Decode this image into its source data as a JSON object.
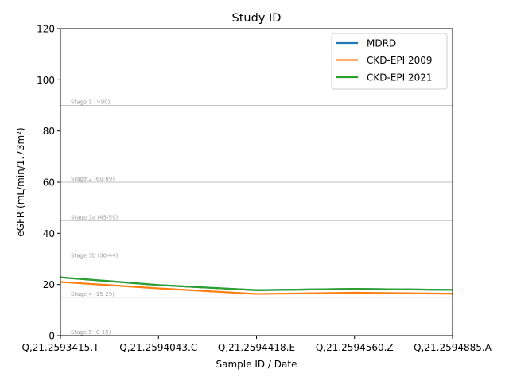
{
  "chart_data": {
    "type": "line",
    "title": "Study ID",
    "xlabel": "Sample ID / Date",
    "ylabel": "eGFR (mL/min/1.73m²)",
    "ylim": [
      0,
      120
    ],
    "yticks": [
      0,
      20,
      40,
      60,
      80,
      100,
      120
    ],
    "categories": [
      "Q,21.2593415.T",
      "Q,21.2594043.C",
      "Q,21.2594418.E",
      "Q,21.2594560.Z",
      "Q,21.2594885.A"
    ],
    "series": [
      {
        "name": "MDRD",
        "color": "#1f77b4",
        "values": [
          22.8,
          19.8,
          17.8,
          18.3,
          17.9
        ]
      },
      {
        "name": "CKD-EPI 2009",
        "color": "#ff7f0e",
        "values": [
          21.0,
          18.5,
          16.3,
          16.8,
          16.4
        ]
      },
      {
        "name": "CKD-EPI 2021",
        "color": "#2ca02c",
        "values": [
          22.8,
          19.8,
          17.8,
          18.3,
          17.9
        ]
      }
    ],
    "reference_lines": [
      {
        "value": 90,
        "label": "Stage 1 (>90)"
      },
      {
        "value": 60,
        "label": "Stage 2 (60-89)"
      },
      {
        "value": 45,
        "label": "Stage 3a (45-59)"
      },
      {
        "value": 30,
        "label": "Stage 3b (30-44)"
      },
      {
        "value": 15,
        "label": "Stage 4 (15-29)"
      },
      {
        "value": 0,
        "label": "Stage 5 (0-15)"
      }
    ],
    "legend_position": "top-right",
    "grid": false
  }
}
